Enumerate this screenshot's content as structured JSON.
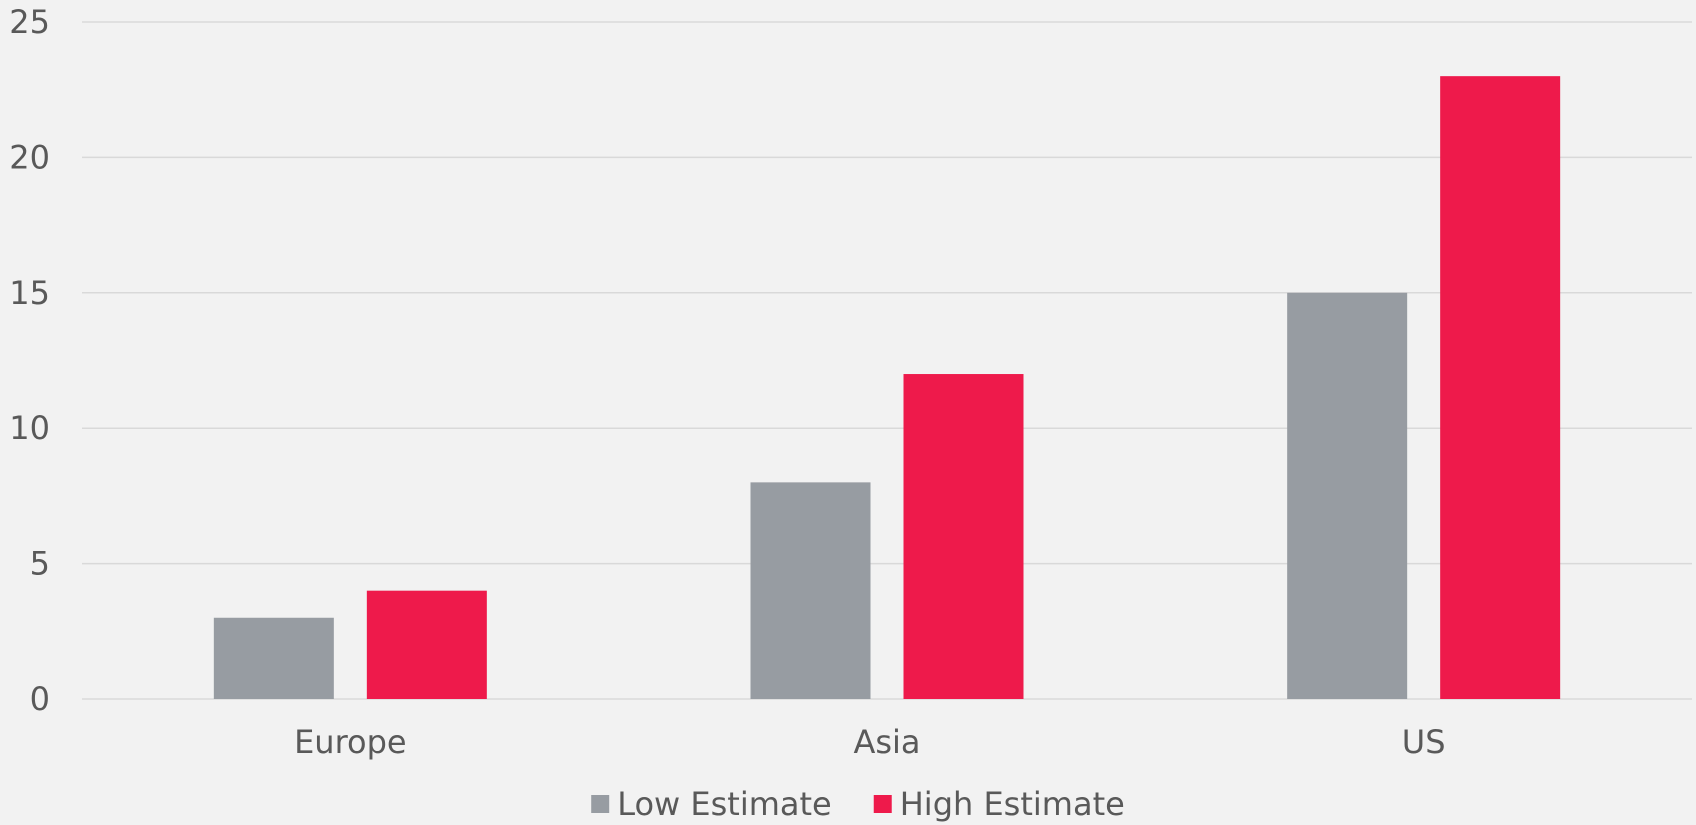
{
  "chart_data": {
    "type": "bar",
    "categories": [
      "Europe",
      "Asia",
      "US"
    ],
    "series": [
      {
        "name": "Low Estimate",
        "values": [
          3,
          8,
          15
        ],
        "color": "#979ca2"
      },
      {
        "name": "High Estimate",
        "values": [
          4,
          12,
          23
        ],
        "color": "#ee1a4b"
      }
    ],
    "title": "",
    "xlabel": "",
    "ylabel": "",
    "ylim": [
      0,
      25
    ],
    "yticks": [
      0,
      5,
      10,
      15,
      20,
      25
    ],
    "grid": true,
    "legend_position": "bottom",
    "background": "#f2f2f2",
    "grid_color": "#d9d9d9",
    "text_color": "#595959"
  }
}
